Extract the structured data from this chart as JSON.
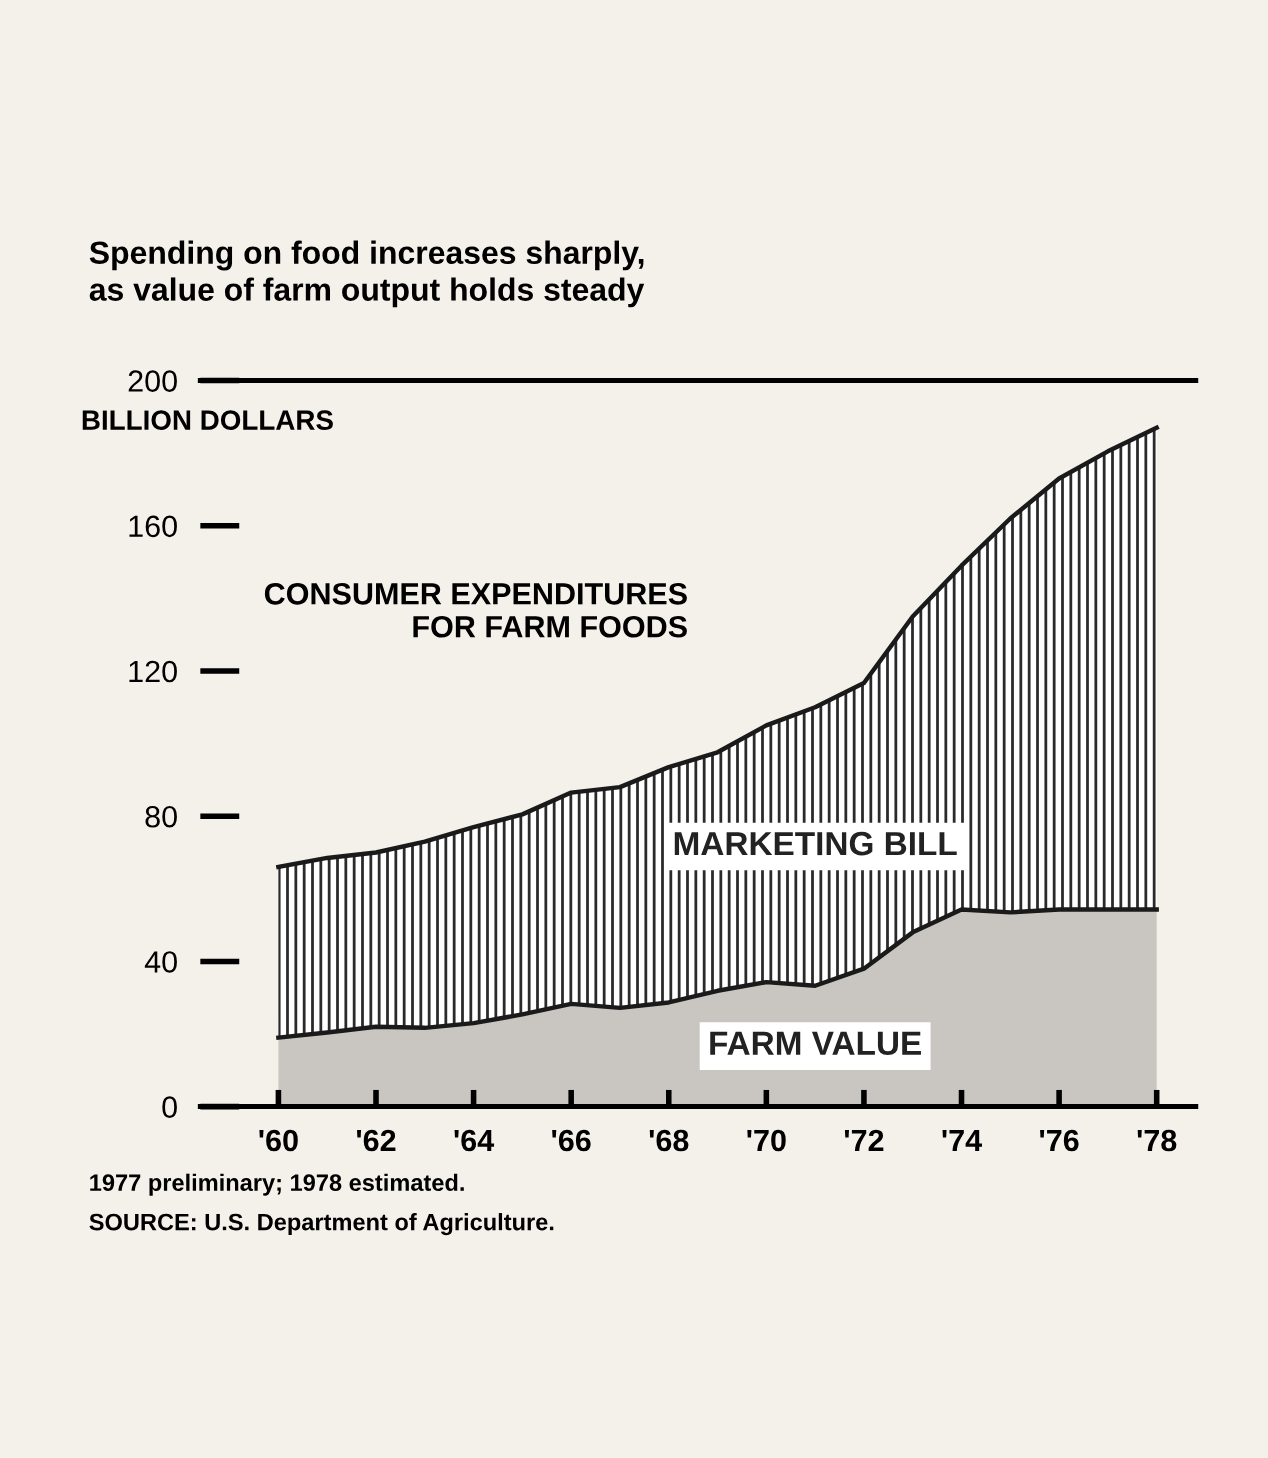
{
  "chart_data": {
    "type": "area",
    "stacked": true,
    "title": "Spending on food increases sharply,\nas value of farm output holds steady",
    "ylabel": "BILLION DOLLARS",
    "x": [
      1960,
      1961,
      1962,
      1963,
      1964,
      1965,
      1966,
      1967,
      1968,
      1969,
      1970,
      1971,
      1972,
      1973,
      1974,
      1975,
      1976,
      1977,
      1978
    ],
    "series": [
      {
        "name": "FARM VALUE",
        "color": "#c9c6c1",
        "values": [
          19,
          20.4,
          22,
          21.7,
          23,
          25.4,
          28.3,
          27.2,
          28.7,
          31.9,
          34.3,
          33.3,
          38,
          48,
          54.3,
          53.5,
          54.3,
          54.3,
          54.3
        ]
      },
      {
        "name": "MARKETING BILL",
        "color": "#2a2a2a",
        "values": [
          47,
          48.1,
          48,
          51.3,
          54,
          55.1,
          58.2,
          60.8,
          64.8,
          65.7,
          70.7,
          76.7,
          78.7,
          87,
          94.7,
          108.5,
          118.7,
          126.2,
          132.7
        ]
      }
    ],
    "xlim": [
      1958.4,
      1978.8
    ],
    "ylim": [
      0,
      200
    ],
    "xticks": [
      {
        "value": 1960,
        "label": "'60"
      },
      {
        "value": 1962,
        "label": "'62"
      },
      {
        "value": 1964,
        "label": "'64"
      },
      {
        "value": 1966,
        "label": "'66"
      },
      {
        "value": 1968,
        "label": "'68"
      },
      {
        "value": 1970,
        "label": "'70"
      },
      {
        "value": 1972,
        "label": "'72"
      },
      {
        "value": 1974,
        "label": "'74"
      },
      {
        "value": 1976,
        "label": "'76"
      },
      {
        "value": 1978,
        "label": "'78"
      }
    ],
    "yticks": [
      0,
      40,
      80,
      120,
      160,
      200
    ],
    "annotations": [
      "CONSUMER EXPENDITURES\nFOR FARM FOODS",
      "1977 preliminary; 1978 estimated.",
      "SOURCE: U.S. Department of Agriculture."
    ],
    "legend": false
  }
}
